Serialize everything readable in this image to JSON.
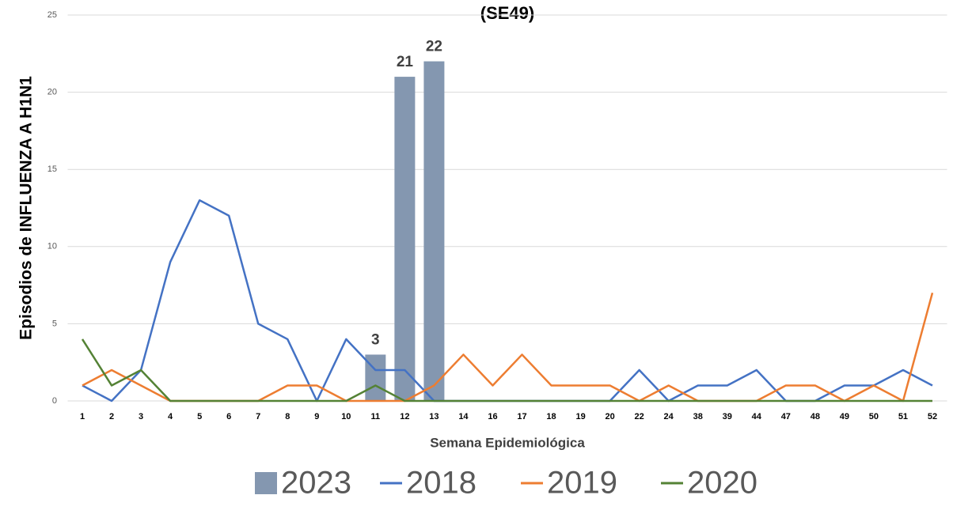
{
  "chart_data": {
    "type": "bar-line",
    "title": "(SE49)",
    "y_label": "Episodios de INFLUENZA A H1N1",
    "x_label": "Semana Epidemiológica",
    "categories": [
      "1",
      "2",
      "3",
      "4",
      "5",
      "6",
      "7",
      "8",
      "9",
      "10",
      "11",
      "12",
      "13",
      "14",
      "16",
      "17",
      "18",
      "19",
      "20",
      "22",
      "24",
      "38",
      "39",
      "44",
      "47",
      "48",
      "49",
      "50",
      "51",
      "52"
    ],
    "series": [
      {
        "name": "2023",
        "type": "bar",
        "color": "#8497b0",
        "values": [
          null,
          null,
          null,
          null,
          null,
          null,
          null,
          null,
          null,
          null,
          3,
          21,
          22,
          null,
          null,
          null,
          null,
          null,
          null,
          null,
          null,
          null,
          null,
          null,
          null,
          null,
          null,
          null,
          null,
          null
        ]
      },
      {
        "name": "2018",
        "type": "line",
        "color": "#4472c4",
        "values": [
          1,
          0,
          2,
          9,
          13,
          12,
          5,
          4,
          0,
          4,
          2,
          2,
          0,
          0,
          0,
          0,
          0,
          0,
          0,
          2,
          0,
          1,
          1,
          2,
          0,
          0,
          1,
          1,
          2,
          1
        ]
      },
      {
        "name": "2019",
        "type": "line",
        "color": "#ed7d31",
        "values": [
          1,
          2,
          1,
          0,
          0,
          0,
          0,
          1,
          1,
          0,
          0,
          0,
          1,
          3,
          1,
          3,
          1,
          1,
          1,
          0,
          1,
          0,
          0,
          0,
          1,
          1,
          0,
          1,
          0,
          7
        ]
      },
      {
        "name": "2020",
        "type": "line",
        "color": "#548235",
        "values": [
          4,
          1,
          2,
          0,
          0,
          0,
          0,
          0,
          0,
          0,
          1,
          0,
          0,
          0,
          0,
          0,
          0,
          0,
          0,
          0,
          0,
          0,
          0,
          0,
          0,
          0,
          0,
          0,
          0,
          0
        ]
      }
    ],
    "ylim": [
      0,
      25
    ],
    "yticks": [
      0,
      5,
      10,
      15,
      20,
      25
    ],
    "grid": true,
    "legend": "bottom"
  }
}
